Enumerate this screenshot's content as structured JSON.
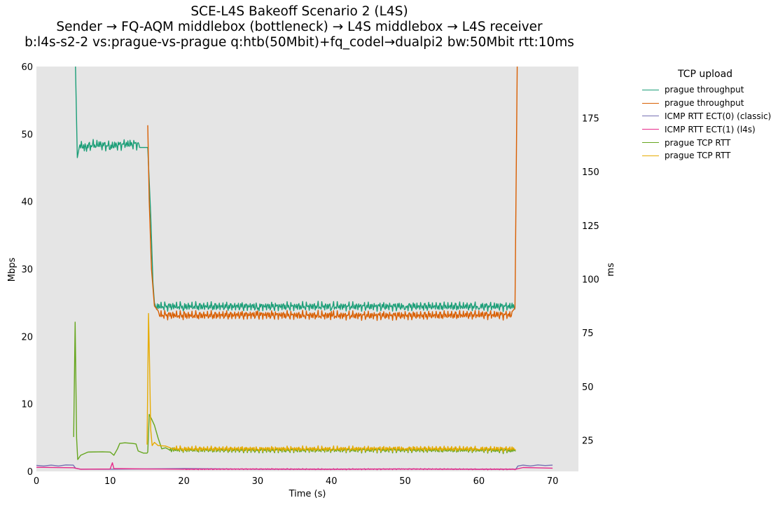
{
  "chart_data": {
    "type": "line",
    "title": "SCE-L4S Bakeoff Scenario 2 (L4S)",
    "subtitle_lines": [
      "Sender → FQ-AQM middlebox (bottleneck) → L4S middlebox → L4S receiver",
      "b:l4s-s2-2 vs:prague-vs-prague q:htb(50Mbit)+fq_codel→dualpi2 bw:50Mbit rtt:10ms"
    ],
    "xlabel": "Time (s)",
    "ylabel_left": "Mbps",
    "ylabel_right": "ms",
    "xlim": [
      0,
      73.5
    ],
    "ylim_left": [
      0,
      60
    ],
    "ylim_right": [
      10.5,
      199
    ],
    "x_ticks": [
      0,
      10,
      20,
      30,
      40,
      50,
      60,
      70
    ],
    "y_ticks_left": [
      0,
      10,
      20,
      30,
      40,
      50,
      60
    ],
    "y_ticks_right": [
      25,
      50,
      75,
      100,
      125,
      150,
      175
    ],
    "grid": false,
    "background": "#e5e5e5",
    "legend": {
      "title": "TCP upload",
      "placement": "outside-right"
    },
    "series": [
      {
        "name": "prague throughput",
        "axis": "left",
        "color": "#1b9e77",
        "points": [
          [
            5.3,
            60
          ],
          [
            5.55,
            46.5
          ],
          [
            5.8,
            48
          ],
          [
            6.5,
            47.5
          ],
          [
            8,
            48
          ],
          [
            10,
            47.7
          ],
          [
            12,
            48
          ],
          [
            14,
            48
          ],
          [
            15.1,
            48
          ],
          [
            15.5,
            38
          ],
          [
            15.8,
            28
          ],
          [
            16,
            25
          ],
          [
            16.3,
            24
          ],
          [
            20,
            24
          ],
          [
            30,
            24
          ],
          [
            40,
            24
          ],
          [
            50,
            24
          ],
          [
            60,
            24
          ],
          [
            64.9,
            24
          ]
        ],
        "ripple": [
          [
            5.8,
            15,
            0.9,
            0.5
          ],
          [
            16.3,
            64.9,
            0.8,
            0.45
          ]
        ]
      },
      {
        "name": "prague throughput",
        "axis": "left",
        "color": "#d95f02",
        "points": [
          [
            15.1,
            51.3
          ],
          [
            15.3,
            40
          ],
          [
            15.6,
            30
          ],
          [
            16,
            24.5
          ],
          [
            16.5,
            23.8
          ],
          [
            20,
            23.7
          ],
          [
            30,
            23.8
          ],
          [
            40,
            23.7
          ],
          [
            50,
            23.7
          ],
          [
            60,
            23.8
          ],
          [
            64.6,
            23.8
          ],
          [
            64.9,
            24.2
          ],
          [
            65.2,
            60
          ]
        ],
        "ripple": [
          [
            16.5,
            64.6,
            0.8,
            -0.6
          ]
        ]
      },
      {
        "name": "ICMP RTT ECT(0) (classic)",
        "axis": "right",
        "color": "#7570b3",
        "points": [
          [
            0,
            13.3
          ],
          [
            1,
            13
          ],
          [
            2,
            13.4
          ],
          [
            3,
            13
          ],
          [
            4,
            13.5
          ],
          [
            5,
            13.4
          ],
          [
            5.3,
            12
          ],
          [
            6,
            11.5
          ],
          [
            10,
            11.5
          ],
          [
            20,
            11.8
          ],
          [
            30,
            11.5
          ],
          [
            40,
            11.5
          ],
          [
            50,
            11.6
          ],
          [
            60,
            11.5
          ],
          [
            65,
            11.5
          ],
          [
            65.3,
            13
          ],
          [
            66,
            13.4
          ],
          [
            67,
            13
          ],
          [
            68,
            13.5
          ],
          [
            69,
            13.2
          ],
          [
            70,
            13.4
          ]
        ],
        "ripple": []
      },
      {
        "name": "ICMP RTT ECT(1) (l4s)",
        "axis": "right",
        "color": "#e7298a",
        "points": [
          [
            0,
            12.4
          ],
          [
            5,
            12.2
          ],
          [
            6,
            11.5
          ],
          [
            10,
            11.6
          ],
          [
            10.3,
            14.5
          ],
          [
            10.5,
            11.8
          ],
          [
            15,
            11.6
          ],
          [
            20,
            11.5
          ],
          [
            30,
            11.6
          ],
          [
            40,
            11.5
          ],
          [
            50,
            11.6
          ],
          [
            60,
            11.5
          ],
          [
            65,
            11.5
          ],
          [
            66,
            12.3
          ],
          [
            70,
            12
          ]
        ],
        "ripple": [
          [
            20,
            65,
            0.3,
            0
          ]
        ]
      },
      {
        "name": "prague TCP RTT",
        "axis": "right",
        "color": "#66a61e",
        "points": [
          [
            5.05,
            26.5
          ],
          [
            5.25,
            80
          ],
          [
            5.45,
            26
          ],
          [
            5.6,
            16
          ],
          [
            6,
            18
          ],
          [
            7,
            19.5
          ],
          [
            9,
            19.6
          ],
          [
            10,
            19.5
          ],
          [
            10.5,
            18
          ],
          [
            11,
            21
          ],
          [
            11.3,
            23.5
          ],
          [
            12,
            23.8
          ],
          [
            13,
            23.5
          ],
          [
            13.5,
            23.3
          ],
          [
            13.8,
            20
          ],
          [
            14.5,
            19
          ],
          [
            15,
            19
          ],
          [
            15.1,
            19.5
          ],
          [
            15.3,
            37
          ],
          [
            15.6,
            35
          ],
          [
            16,
            32
          ],
          [
            16.5,
            26
          ],
          [
            17,
            21
          ],
          [
            17.5,
            21.5
          ],
          [
            18,
            20.6
          ],
          [
            20,
            20.6
          ],
          [
            30,
            20.4
          ],
          [
            40,
            20.5
          ],
          [
            50,
            20.5
          ],
          [
            60,
            20.5
          ],
          [
            64.8,
            20.2
          ],
          [
            65,
            20
          ]
        ],
        "ripple": [
          [
            18,
            64.8,
            1.6,
            0
          ]
        ]
      },
      {
        "name": "prague TCP RTT",
        "axis": "right",
        "color": "#e6ab02",
        "points": [
          [
            15,
            23
          ],
          [
            15.2,
            84
          ],
          [
            15.35,
            60
          ],
          [
            15.5,
            30
          ],
          [
            15.7,
            22.5
          ],
          [
            16,
            24
          ],
          [
            16.5,
            22.5
          ],
          [
            17.5,
            22.3
          ],
          [
            18.5,
            21
          ],
          [
            20,
            20.8
          ],
          [
            30,
            20.8
          ],
          [
            40,
            20.8
          ],
          [
            50,
            20.9
          ],
          [
            60,
            20.8
          ],
          [
            64.8,
            20.8
          ],
          [
            65,
            20.5
          ]
        ],
        "ripple": [
          [
            18.5,
            64.8,
            1.5,
            0.2
          ]
        ]
      }
    ]
  }
}
